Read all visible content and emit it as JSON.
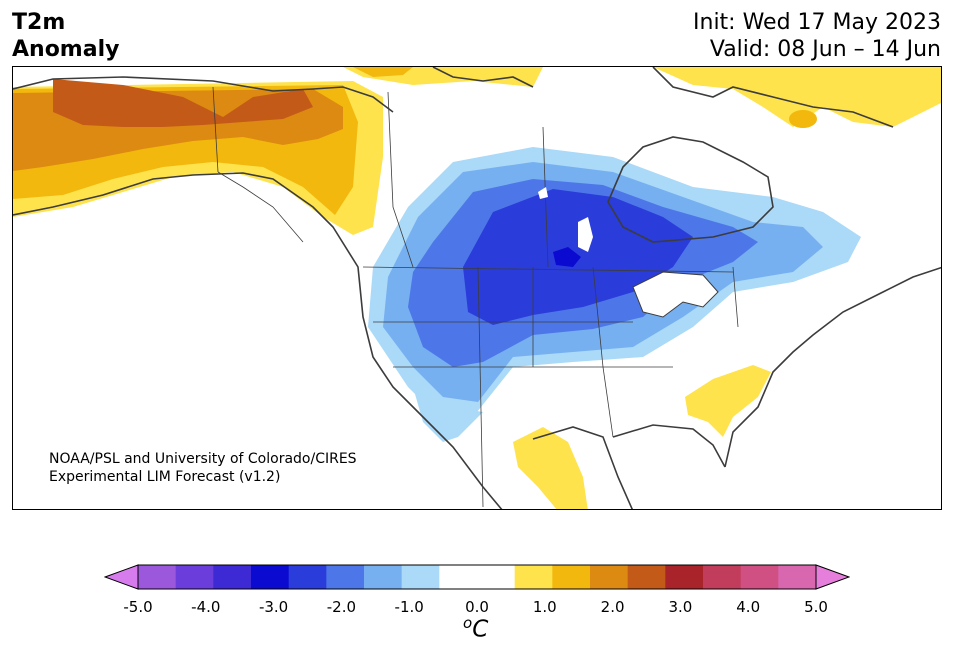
{
  "title": {
    "variable": "T2m",
    "subtitle": "Anomaly"
  },
  "dates": {
    "init": "Init: Wed 17 May 2023",
    "valid": "Valid: 08 Jun – 14 Jun"
  },
  "credit": {
    "line1": "NOAA/PSL and University of Colorado/CIRES",
    "line2": "Experimental LIM Forecast (v1.2)"
  },
  "colorbar": {
    "unit_base": "C",
    "unit_sup": "o",
    "tick_labels": [
      "-5.0",
      "-4.0",
      "-3.0",
      "-2.0",
      "-1.0",
      "0.0",
      "1.0",
      "2.0",
      "3.0",
      "4.0",
      "5.0"
    ],
    "colors": {
      "under": "#d77ced",
      "bins": [
        "#9c58dd",
        "#6b3edc",
        "#3d2ad4",
        "#0a0ad0",
        "#2a3cda",
        "#4d77e8",
        "#76b0f0",
        "#abd9f8",
        "#ffffff",
        "#ffffff",
        "#fee34c",
        "#f3b80d",
        "#dd8a12",
        "#c45a18",
        "#a8232a",
        "#c23c5c",
        "#d15084",
        "#d867b0"
      ],
      "over": "#e67fdb"
    }
  },
  "map_colors": {
    "coast": "#3c3c3c",
    "anom_plus_1": "#fee34c",
    "anom_plus_1_5": "#f3b80d",
    "anom_plus_2": "#dd8a12",
    "anom_plus_2_5": "#c45a18",
    "anom_minus_1": "#abd9f8",
    "anom_minus_1_5": "#76b0f0",
    "anom_minus_2": "#4d77e8",
    "anom_minus_2_5": "#2a3cda",
    "anom_minus_3": "#0a0ad0"
  }
}
